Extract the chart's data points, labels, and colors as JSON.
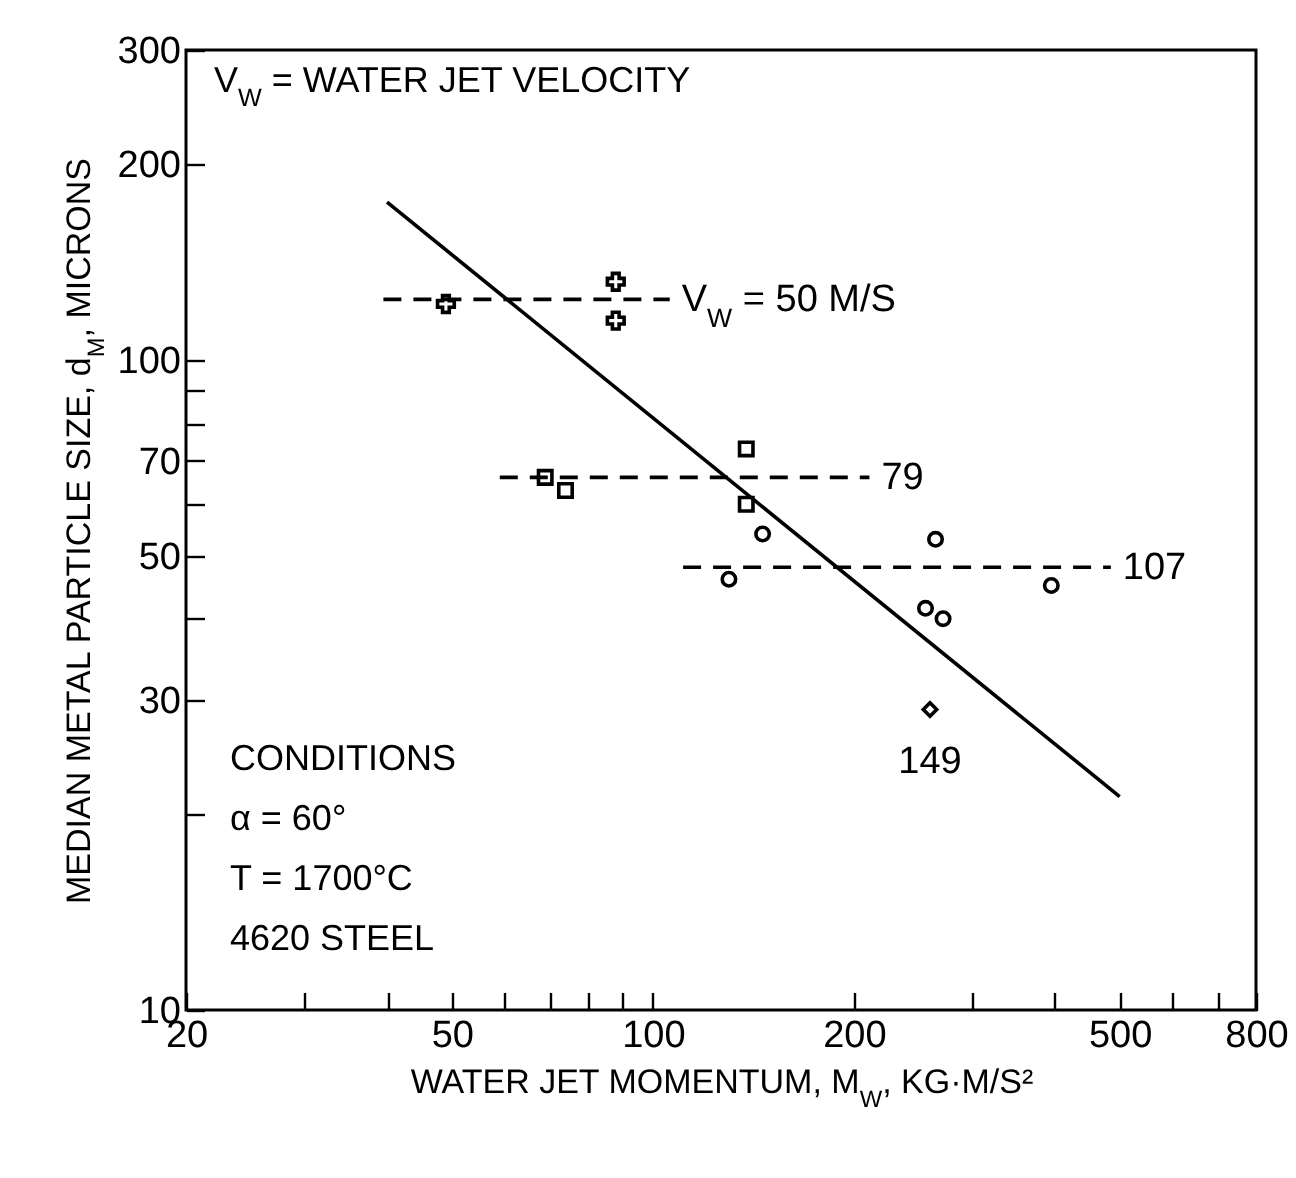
{
  "chart_data": {
    "type": "scatter",
    "xlabel": "WATER JET MOMENTUM, M$_{W}$, KG·M/S²",
    "ylabel": "MEDIAN METAL PARTICLE SIZE, d$_{M}$, MICRONS",
    "log": "xy",
    "xlim": [
      20,
      800
    ],
    "ylim": [
      10,
      300
    ],
    "xticks": [
      20,
      {
        "value": 30,
        "label": null
      },
      {
        "value": 40,
        "label": null
      },
      50,
      {
        "value": 60,
        "label": null
      },
      {
        "value": 70,
        "label": null
      },
      {
        "value": 80,
        "label": null
      },
      {
        "value": 90,
        "label": null
      },
      100,
      200,
      {
        "value": 300,
        "label": null
      },
      {
        "value": 400,
        "label": null
      },
      500,
      {
        "value": 600,
        "label": null
      },
      {
        "value": 700,
        "label": null
      },
      800
    ],
    "yticks": [
      10,
      {
        "value": 20,
        "label": null
      },
      30,
      {
        "value": 40,
        "label": null
      },
      50,
      {
        "value": 60,
        "label": null
      },
      70,
      {
        "value": 80,
        "label": null
      },
      {
        "value": 90,
        "label": null
      },
      100,
      200,
      300
    ],
    "grid": false,
    "series": [
      {
        "marker": "cross",
        "color": "#000000",
        "x": [
          49,
          88,
          88
        ],
        "values": [
          122,
          132,
          115
        ]
      },
      {
        "marker": "square",
        "color": "#000000",
        "x": [
          69,
          74,
          138,
          138
        ],
        "values": [
          66,
          63,
          73,
          60
        ]
      },
      {
        "marker": "circle",
        "color": "#000000",
        "x": [
          146,
          130,
          265,
          395,
          256,
          272
        ],
        "values": [
          54,
          46,
          53,
          45,
          41.5,
          40
        ]
      },
      {
        "name": "149",
        "marker": "diamond",
        "color": "#000000",
        "x": [
          260
        ],
        "values": [
          29
        ]
      },
      {
        "name": "V$_{W}$ = 50 M/S",
        "type": "line",
        "marker": "none",
        "line_style": "dashed",
        "color": "#000000",
        "x": [
          39.5,
          106
        ],
        "values": [
          124,
          124
        ]
      },
      {
        "name": "79",
        "type": "line",
        "marker": "none",
        "line_style": "dashed",
        "color": "#000000",
        "x": [
          59,
          211
        ],
        "values": [
          66,
          66
        ]
      },
      {
        "name": "107",
        "type": "line",
        "marker": "none",
        "line_style": "dashed",
        "color": "#000000",
        "x": [
          111,
          485
        ],
        "values": [
          48,
          48
        ]
      },
      {
        "type": "line",
        "marker": "none",
        "line_style": "solid",
        "color": "#000000",
        "x": [
          40,
          500
        ],
        "values": [
          175,
          21.3
        ]
      }
    ],
    "annotations": [
      "V$_{W}$ = WATER JET VELOCITY",
      "CONDITIONS",
      "α = 60°",
      "T = 1700°C",
      "4620 STEEL"
    ]
  }
}
